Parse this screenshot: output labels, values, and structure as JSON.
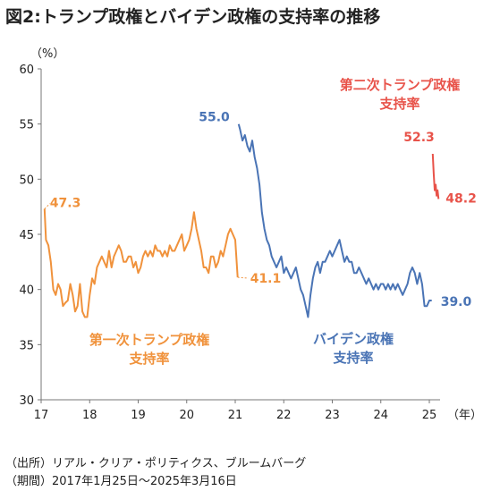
{
  "title": "図2:トランプ政権とバイデン政権の支持率の推移",
  "source_lines": [
    "（出所）リアル・クリア・ポリティクス、ブルームバーグ",
    "（期間）2017年1月25日～2025年3月16日"
  ],
  "chart_data": {
    "type": "line",
    "title": "図2:トランプ政権とバイデン政権の支持率の推移",
    "xlabel": "（年）",
    "ylabel": "（%）",
    "xlim": [
      17,
      25.4
    ],
    "ylim": [
      30,
      60
    ],
    "x_ticks": [
      17,
      18,
      19,
      20,
      21,
      22,
      23,
      24,
      25
    ],
    "x_tick_labels": [
      "17",
      "18",
      "19",
      "20",
      "21",
      "22",
      "23",
      "24",
      "25"
    ],
    "y_ticks": [
      30,
      35,
      40,
      45,
      50,
      55,
      60
    ],
    "grid": false,
    "series": [
      {
        "name": "第一次トランプ政権支持率",
        "color": "#f0923c",
        "label_lines": [
          "第一次トランプ政権",
          "支持率"
        ],
        "x": [
          17.07,
          17.1,
          17.15,
          17.2,
          17.25,
          17.3,
          17.35,
          17.4,
          17.45,
          17.5,
          17.55,
          17.6,
          17.65,
          17.7,
          17.75,
          17.8,
          17.85,
          17.9,
          17.95,
          18.0,
          18.05,
          18.1,
          18.15,
          18.2,
          18.25,
          18.3,
          18.35,
          18.4,
          18.45,
          18.5,
          18.55,
          18.6,
          18.65,
          18.7,
          18.75,
          18.8,
          18.85,
          18.9,
          18.95,
          19.0,
          19.05,
          19.1,
          19.15,
          19.2,
          19.25,
          19.3,
          19.35,
          19.4,
          19.45,
          19.5,
          19.55,
          19.6,
          19.65,
          19.7,
          19.75,
          19.8,
          19.85,
          19.9,
          19.95,
          20.0,
          20.05,
          20.1,
          20.15,
          20.2,
          20.25,
          20.3,
          20.35,
          20.4,
          20.45,
          20.5,
          20.55,
          20.6,
          20.65,
          20.7,
          20.75,
          20.8,
          20.85,
          20.9,
          20.95,
          21.0,
          21.05
        ],
        "y": [
          47.3,
          44.5,
          44.0,
          42.5,
          40.0,
          39.5,
          40.5,
          40.0,
          38.5,
          38.8,
          39.0,
          40.5,
          39.5,
          38.0,
          38.5,
          40.5,
          38.0,
          37.5,
          37.5,
          39.5,
          41.0,
          40.5,
          42.0,
          42.5,
          43.0,
          42.5,
          42.0,
          43.5,
          42.0,
          43.0,
          43.5,
          44.0,
          43.5,
          42.5,
          42.5,
          43.0,
          43.0,
          42.0,
          42.5,
          41.5,
          42.0,
          43.0,
          43.5,
          43.0,
          43.5,
          43.0,
          44.0,
          43.5,
          43.5,
          43.0,
          43.5,
          43.0,
          44.0,
          43.5,
          43.5,
          44.0,
          44.5,
          45.0,
          43.5,
          44.0,
          44.5,
          45.5,
          47.0,
          45.5,
          44.5,
          43.5,
          42.0,
          42.0,
          41.5,
          43.0,
          43.0,
          42.0,
          42.5,
          43.5,
          43.0,
          44.0,
          45.0,
          45.5,
          45.0,
          44.5,
          41.1
        ],
        "start_label": "47.3",
        "end_label": "41.1"
      },
      {
        "name": "バイデン政権支持率",
        "color": "#4a74b5",
        "label_lines": [
          "バイデン政権",
          "支持率"
        ],
        "x": [
          21.07,
          21.1,
          21.15,
          21.2,
          21.25,
          21.3,
          21.35,
          21.4,
          21.45,
          21.5,
          21.55,
          21.6,
          21.65,
          21.7,
          21.75,
          21.8,
          21.85,
          21.9,
          21.95,
          22.0,
          22.05,
          22.1,
          22.15,
          22.2,
          22.25,
          22.3,
          22.35,
          22.4,
          22.45,
          22.5,
          22.55,
          22.6,
          22.65,
          22.7,
          22.75,
          22.8,
          22.85,
          22.9,
          22.95,
          23.0,
          23.05,
          23.1,
          23.15,
          23.2,
          23.25,
          23.3,
          23.35,
          23.4,
          23.45,
          23.5,
          23.55,
          23.6,
          23.65,
          23.7,
          23.75,
          23.8,
          23.85,
          23.9,
          23.95,
          24.0,
          24.05,
          24.1,
          24.15,
          24.2,
          24.25,
          24.3,
          24.35,
          24.4,
          24.45,
          24.5,
          24.55,
          24.6,
          24.65,
          24.7,
          24.75,
          24.8,
          24.85,
          24.9,
          24.95,
          25.0,
          25.05
        ],
        "y": [
          55.0,
          54.5,
          53.5,
          54.0,
          53.0,
          52.5,
          53.5,
          52.0,
          51.0,
          49.5,
          47.0,
          45.5,
          44.5,
          44.0,
          43.0,
          42.5,
          42.0,
          42.5,
          43.0,
          41.5,
          42.0,
          41.5,
          41.0,
          41.5,
          42.0,
          41.0,
          40.0,
          39.5,
          38.5,
          37.5,
          39.5,
          41.0,
          42.0,
          42.5,
          41.5,
          42.5,
          42.5,
          43.0,
          43.5,
          43.0,
          43.5,
          44.0,
          44.5,
          43.5,
          42.5,
          43.0,
          42.5,
          42.5,
          41.5,
          41.5,
          42.0,
          41.5,
          41.0,
          40.5,
          41.0,
          40.5,
          40.0,
          40.5,
          40.0,
          40.5,
          40.5,
          40.0,
          40.5,
          40.0,
          40.5,
          40.0,
          40.5,
          40.0,
          39.5,
          40.0,
          40.5,
          41.5,
          42.0,
          41.5,
          40.5,
          41.5,
          40.5,
          38.5,
          38.5,
          39.0,
          39.0
        ],
        "start_label": "55.0",
        "end_label": "39.0"
      },
      {
        "name": "第二次トランプ政権支持率",
        "color": "#e8534a",
        "label_lines": [
          "第二次トランプ政権",
          "支持率"
        ],
        "x": [
          25.07,
          25.09,
          25.11,
          25.13,
          25.15,
          25.17,
          25.19
        ],
        "y": [
          52.3,
          50.5,
          49.0,
          49.5,
          48.5,
          49.0,
          48.2
        ],
        "start_label": "52.3",
        "end_label": "48.2"
      }
    ]
  }
}
